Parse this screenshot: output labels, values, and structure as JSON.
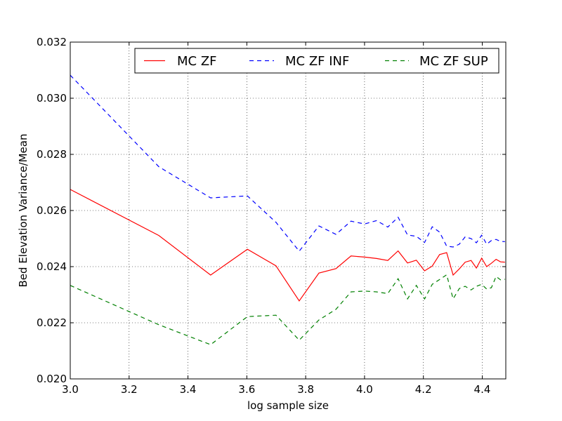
{
  "chart_data": {
    "type": "line",
    "title": "",
    "xlabel": "log sample size",
    "ylabel": "Bed Elevation Variance/Mean",
    "xlim": [
      3.0,
      4.48
    ],
    "ylim": [
      0.02,
      0.032
    ],
    "xticks": [
      "3.0",
      "3.2",
      "3.4",
      "3.6",
      "3.8",
      "4.0",
      "4.2",
      "4.4"
    ],
    "yticks": [
      "0.020",
      "0.022",
      "0.024",
      "0.026",
      "0.028",
      "0.030",
      "0.032"
    ],
    "grid": true,
    "legend_position": "top-right",
    "series": [
      {
        "name": "MC ZF",
        "color": "#ff0000",
        "dash": "solid",
        "x": [
          3.0,
          3.301,
          3.477,
          3.602,
          3.699,
          3.778,
          3.845,
          3.903,
          3.954,
          4.0,
          4.041,
          4.079,
          4.114,
          4.146,
          4.176,
          4.204,
          4.23,
          4.255,
          4.279,
          4.301,
          4.322,
          4.342,
          4.362,
          4.38,
          4.398,
          4.415,
          4.431,
          4.447,
          4.462,
          4.477
        ],
        "values": [
          0.02675,
          0.02511,
          0.0237,
          0.02462,
          0.02403,
          0.02278,
          0.02377,
          0.02393,
          0.02438,
          0.02434,
          0.02429,
          0.02422,
          0.02456,
          0.02413,
          0.02423,
          0.02385,
          0.02402,
          0.02443,
          0.0245,
          0.0237,
          0.02392,
          0.02416,
          0.02422,
          0.02395,
          0.0243,
          0.024,
          0.02412,
          0.02426,
          0.02417,
          0.02416
        ]
      },
      {
        "name": "MC ZF INF",
        "color": "#0000ff",
        "dash": "6,5",
        "x": [
          3.0,
          3.301,
          3.477,
          3.602,
          3.699,
          3.778,
          3.845,
          3.903,
          3.954,
          4.0,
          4.041,
          4.079,
          4.114,
          4.146,
          4.176,
          4.204,
          4.23,
          4.255,
          4.279,
          4.301,
          4.322,
          4.342,
          4.362,
          4.38,
          4.398,
          4.415,
          4.431,
          4.447,
          4.462,
          4.477
        ],
        "values": [
          0.03082,
          0.02756,
          0.02645,
          0.02652,
          0.02558,
          0.02455,
          0.02545,
          0.02515,
          0.02562,
          0.02552,
          0.02564,
          0.02541,
          0.02576,
          0.02513,
          0.02508,
          0.02486,
          0.02542,
          0.02523,
          0.02473,
          0.0247,
          0.0248,
          0.02506,
          0.025,
          0.02485,
          0.02512,
          0.0248,
          0.02493,
          0.02497,
          0.0249,
          0.02489
        ]
      },
      {
        "name": "MC ZF SUP",
        "color": "#008000",
        "dash": "6,5",
        "x": [
          3.0,
          3.301,
          3.477,
          3.602,
          3.699,
          3.778,
          3.845,
          3.903,
          3.954,
          4.0,
          4.041,
          4.079,
          4.114,
          4.146,
          4.176,
          4.204,
          4.23,
          4.255,
          4.279,
          4.301,
          4.322,
          4.342,
          4.362,
          4.38,
          4.398,
          4.415,
          4.431,
          4.447,
          4.462,
          4.477
        ],
        "values": [
          0.02333,
          0.02193,
          0.02122,
          0.02222,
          0.02227,
          0.02138,
          0.0221,
          0.02248,
          0.0231,
          0.02313,
          0.0231,
          0.02304,
          0.02357,
          0.02285,
          0.02333,
          0.02285,
          0.02337,
          0.02354,
          0.02371,
          0.02285,
          0.02322,
          0.0233,
          0.02317,
          0.0233,
          0.02337,
          0.0232,
          0.02325,
          0.02365,
          0.02353,
          0.02355
        ]
      }
    ]
  }
}
